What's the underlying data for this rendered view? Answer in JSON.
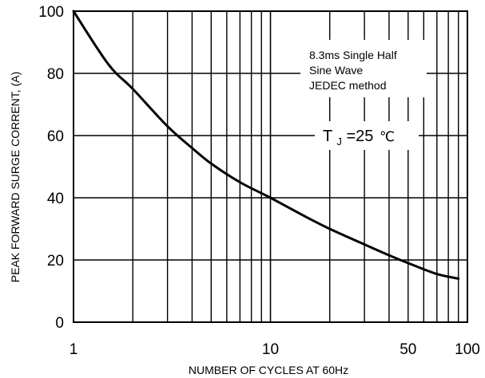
{
  "chart_data": {
    "type": "line",
    "title": "",
    "xlabel": "NUMBER OF CYCLES AT 60Hz",
    "ylabel": "PEAK FORWARD SURGE CORRENT, (A)",
    "x_scale": "log",
    "xlim": [
      1,
      100
    ],
    "ylim": [
      0,
      100
    ],
    "grid": true,
    "x_ticks": [
      {
        "value": 1,
        "label": "1"
      },
      {
        "value": 10,
        "label": "10"
      },
      {
        "value": 50,
        "label": "50"
      },
      {
        "value": 100,
        "label": "100"
      }
    ],
    "y_ticks": [
      {
        "value": 0,
        "label": "0"
      },
      {
        "value": 20,
        "label": "20"
      },
      {
        "value": 40,
        "label": "40"
      },
      {
        "value": 60,
        "label": "60"
      },
      {
        "value": 80,
        "label": "80"
      },
      {
        "value": 100,
        "label": "100"
      }
    ],
    "series": [
      {
        "x": [
          1,
          1.5,
          2,
          3,
          4,
          5,
          7,
          10,
          15,
          20,
          30,
          40,
          50,
          70,
          90
        ],
        "y": [
          100,
          83,
          75,
          63,
          56,
          51,
          45,
          40,
          34,
          30,
          25,
          21.5,
          19,
          15.5,
          14
        ]
      }
    ],
    "annotations": {
      "note_lines": [
        "8.3ms Single Half",
        "Sine Wave",
        "JEDEC method"
      ],
      "condition_main": "T",
      "condition_sub": "J",
      "condition_value": "=25",
      "condition_unit": "℃"
    },
    "line_color": "#000000",
    "grid_color": "#000000"
  }
}
